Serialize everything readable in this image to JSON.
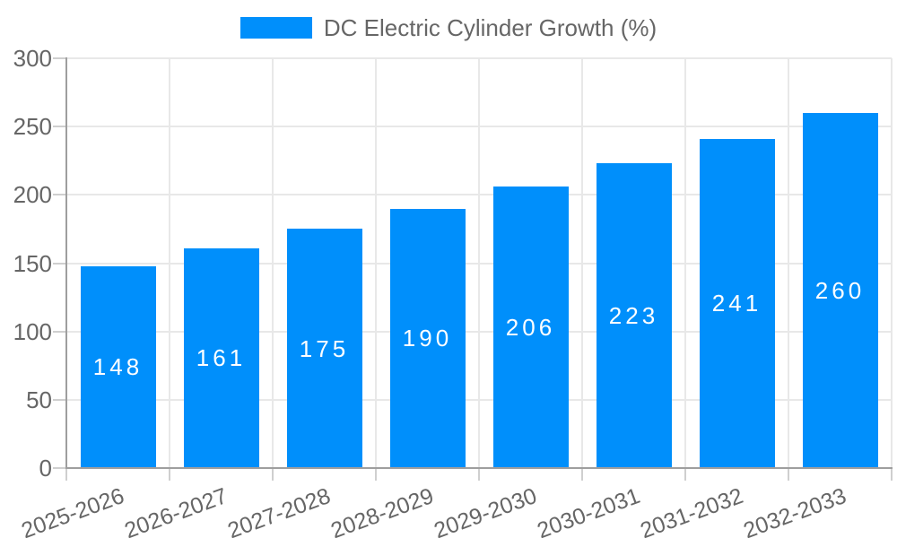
{
  "chart_data": {
    "type": "bar",
    "series_name": "DC Electric Cylinder Growth (%)",
    "title": "",
    "xlabel": "",
    "ylabel": "",
    "categories": [
      "2025-2026",
      "2026-2027",
      "2027-2028",
      "2028-2029",
      "2029-2030",
      "2030-2031",
      "2031-2032",
      "2032-2033"
    ],
    "values": [
      148,
      161,
      175,
      190,
      206,
      223,
      241,
      260
    ],
    "ylim": [
      0,
      300
    ],
    "yticks": [
      0,
      50,
      100,
      150,
      200,
      250,
      300
    ],
    "grid": true,
    "legend_position": "top",
    "x_label_rotation_deg": -20,
    "colors": {
      "bar": "#008FFB",
      "bar_label": "#FFFFFF",
      "axis_line": "#9E9E9E",
      "tick": "#CFCFCF",
      "grid": "#E8E8E8",
      "text": "#666666",
      "background": "#FFFFFF"
    }
  }
}
